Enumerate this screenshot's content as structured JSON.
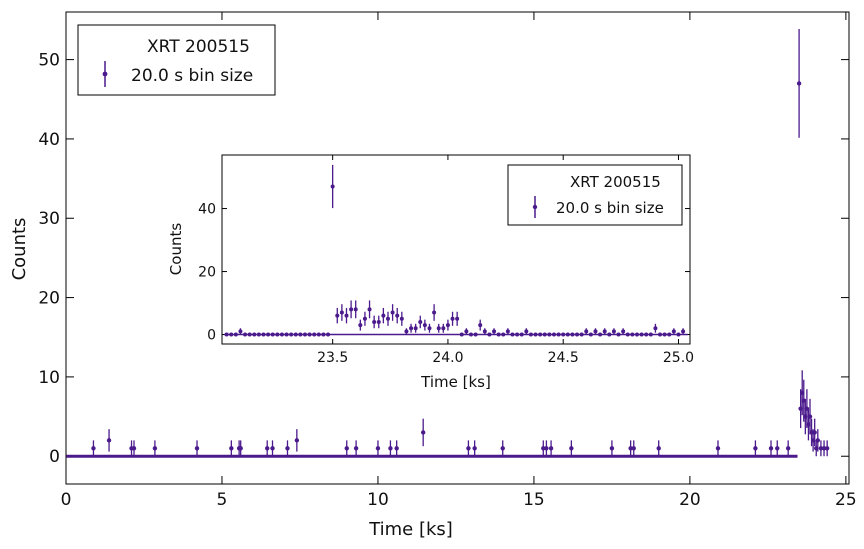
{
  "colors": {
    "series": "#4b1a8c",
    "axis": "#000000",
    "background": "#ffffff"
  },
  "chart_data": [
    {
      "type": "scatter",
      "xlabel": "Time [ks]",
      "ylabel": "Counts",
      "xlim": [
        0,
        25.1
      ],
      "ylim": [
        -3.5,
        56
      ],
      "xticks": [
        "0",
        "5",
        "10",
        "15",
        "20",
        "25"
      ],
      "yticks": [
        "0",
        "10",
        "20",
        "30",
        "40",
        "50"
      ],
      "legend": {
        "title": "XRT 200515",
        "entry": "20.0 s bin size",
        "placement": "top-left"
      },
      "grid": false,
      "series": [
        {
          "x": [
            0.88,
            1.38,
            2.1,
            2.18,
            2.85,
            4.2,
            5.3,
            5.55,
            5.6,
            6.45,
            6.62,
            7.1,
            7.4,
            9.0,
            9.3,
            10.0,
            10.4,
            10.6,
            11.45,
            12.9,
            13.1,
            14.0,
            15.3,
            15.4,
            15.55,
            16.2,
            17.5,
            18.1,
            18.2,
            19.0,
            20.9,
            22.1,
            22.6,
            22.8,
            23.15,
            23.5,
            23.55,
            23.6,
            23.65,
            23.7,
            23.75,
            23.8,
            23.85,
            23.9,
            23.95,
            24.0,
            24.05,
            24.1,
            24.2,
            24.3,
            24.4
          ],
          "y": [
            1,
            2,
            1,
            1,
            1,
            1,
            1,
            1,
            1,
            1,
            1,
            1,
            2,
            1,
            1,
            1,
            1,
            1,
            3,
            1,
            1,
            1,
            1,
            1,
            1,
            1,
            1,
            1,
            1,
            1,
            1,
            1,
            1,
            1,
            1,
            47,
            6,
            8,
            7,
            5,
            6,
            4,
            5,
            3,
            2,
            3,
            1,
            2,
            1,
            1,
            1
          ]
        }
      ]
    },
    {
      "type": "scatter",
      "xlabel": "Time [ks]",
      "ylabel": "Counts",
      "xlim": [
        23.02,
        25.05
      ],
      "ylim": [
        -3,
        57
      ],
      "xticks": [
        "23.5",
        "24.0",
        "24.5",
        "25.0"
      ],
      "yticks": [
        "0",
        "20",
        "40"
      ],
      "legend": {
        "title": "XRT 200515",
        "entry": "20.0 s bin size",
        "placement": "top-right"
      },
      "grid": false,
      "series": [
        {
          "x": [
            23.04,
            23.06,
            23.08,
            23.1,
            23.12,
            23.14,
            23.16,
            23.18,
            23.2,
            23.22,
            23.24,
            23.26,
            23.28,
            23.3,
            23.32,
            23.34,
            23.36,
            23.38,
            23.4,
            23.42,
            23.44,
            23.46,
            23.48,
            23.5,
            23.52,
            23.54,
            23.56,
            23.58,
            23.6,
            23.62,
            23.64,
            23.66,
            23.68,
            23.7,
            23.72,
            23.74,
            23.76,
            23.78,
            23.8,
            23.82,
            23.84,
            23.86,
            23.88,
            23.9,
            23.92,
            23.94,
            23.96,
            23.98,
            24.0,
            24.02,
            24.04,
            24.06,
            24.08,
            24.1,
            24.12,
            24.14,
            24.16,
            24.18,
            24.2,
            24.22,
            24.24,
            24.26,
            24.28,
            24.3,
            24.32,
            24.34,
            24.36,
            24.38,
            24.4,
            24.42,
            24.44,
            24.46,
            24.48,
            24.5,
            24.52,
            24.54,
            24.56,
            24.58,
            24.6,
            24.62,
            24.64,
            24.66,
            24.68,
            24.7,
            24.72,
            24.74,
            24.76,
            24.78,
            24.8,
            24.82,
            24.84,
            24.86,
            24.88,
            24.9,
            24.92,
            24.94,
            24.96,
            24.98,
            25.0,
            25.02
          ],
          "y": [
            0,
            0,
            0,
            1,
            0,
            0,
            0,
            0,
            0,
            0,
            0,
            0,
            0,
            0,
            0,
            0,
            0,
            0,
            0,
            0,
            0,
            0,
            0,
            47,
            6,
            7,
            6,
            8,
            8,
            3,
            5,
            8,
            4,
            4,
            6,
            5,
            7,
            6,
            5,
            1,
            2,
            2,
            4,
            3,
            2,
            7,
            2,
            2,
            3,
            5,
            5,
            0,
            1,
            0,
            0,
            3,
            1,
            0,
            1,
            0,
            0,
            1,
            0,
            0,
            0,
            1,
            0,
            0,
            0,
            0,
            0,
            0,
            0,
            0,
            0,
            0,
            0,
            0,
            1,
            0,
            1,
            0,
            1,
            0,
            1,
            0,
            1,
            0,
            0,
            0,
            0,
            0,
            0,
            2,
            0,
            0,
            0,
            1,
            0,
            1
          ]
        }
      ]
    }
  ]
}
